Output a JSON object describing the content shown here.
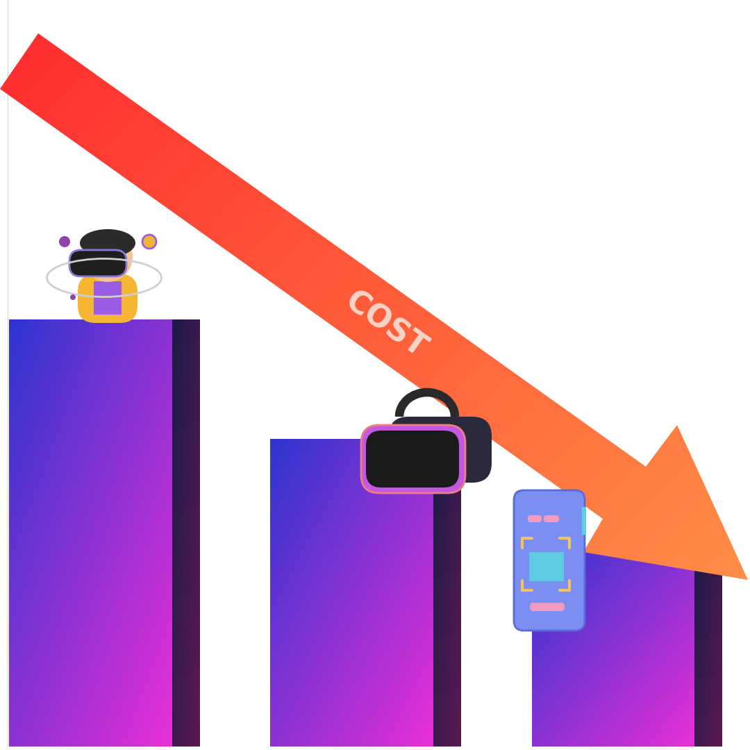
{
  "chart_data": {
    "type": "bar",
    "categories": [
      null,
      null,
      null
    ],
    "values": [
      100,
      72,
      46
    ],
    "color": "#8a35d4",
    "ylim": [
      0,
      175
    ],
    "yticks": [],
    "tick_labels": false,
    "annotations": [
      "COST"
    ]
  }
}
